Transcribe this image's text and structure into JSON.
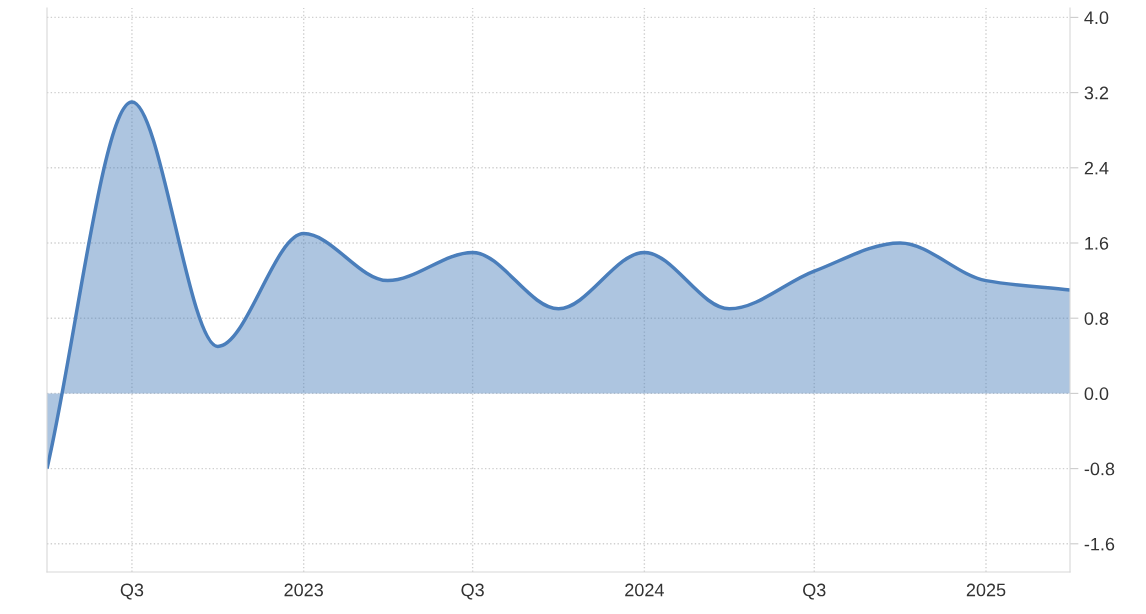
{
  "chart_data": {
    "type": "area",
    "x": [
      "2022-04",
      "2022-07",
      "2022-10",
      "2023-01",
      "2023-04",
      "2023-07",
      "2023-10",
      "2024-01",
      "2024-04",
      "2024-07",
      "2024-10",
      "2025-01",
      "2025-04"
    ],
    "series": [
      {
        "color": "#4a7ebb",
        "values": [
          -0.8,
          3.1,
          0.5,
          1.7,
          1.2,
          1.5,
          0.9,
          1.5,
          0.9,
          1.3,
          1.6,
          1.2,
          1.1
        ]
      }
    ],
    "xlim": [
      "2022-04",
      "2025-04"
    ],
    "xticks": [
      {
        "value": "2022-07",
        "label": "Q3"
      },
      {
        "value": "2023-01",
        "label": "2023"
      },
      {
        "value": "2023-07",
        "label": "Q3"
      },
      {
        "value": "2024-01",
        "label": "2024"
      },
      {
        "value": "2024-07",
        "label": "Q3"
      },
      {
        "value": "2025-01",
        "label": "2025"
      }
    ],
    "ylim": [
      -1.9,
      4.1
    ],
    "yticks": [
      {
        "value": 4.0,
        "label": "4.0"
      },
      {
        "value": 3.2,
        "label": "3.2"
      },
      {
        "value": 2.4,
        "label": "2.4"
      },
      {
        "value": 1.6,
        "label": "1.6"
      },
      {
        "value": 0.8,
        "label": "0.8"
      },
      {
        "value": 0.0,
        "label": "0.0"
      },
      {
        "value": -0.8,
        "label": "-0.8"
      },
      {
        "value": -1.6,
        "label": "-1.6"
      }
    ],
    "grid": true,
    "marker": "none",
    "line_style": "solid"
  }
}
